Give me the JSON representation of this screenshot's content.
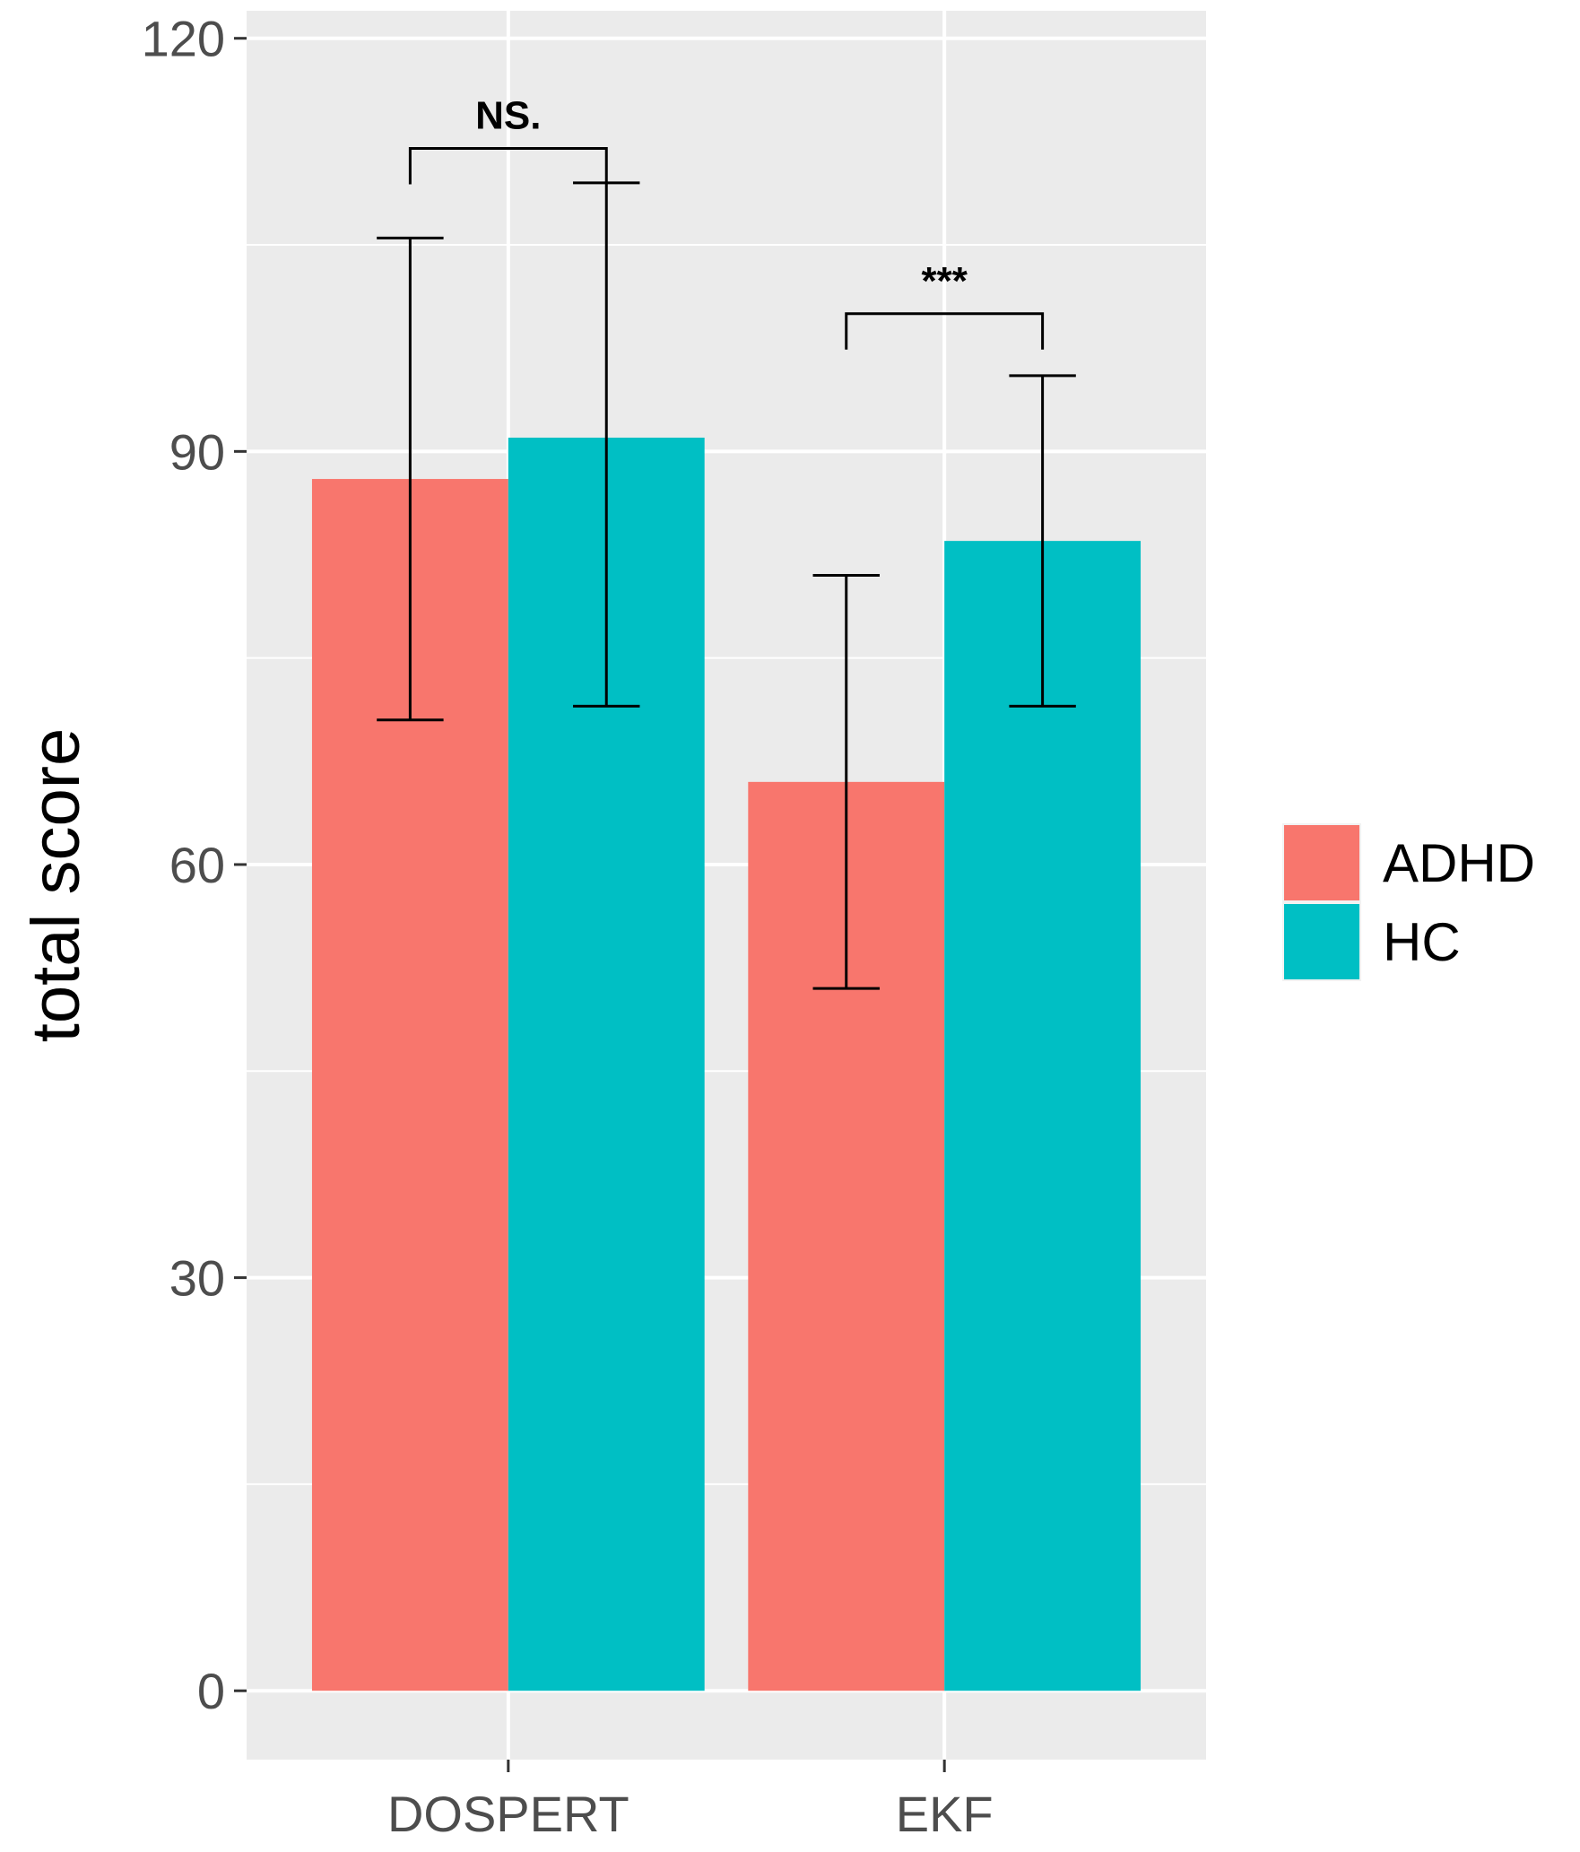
{
  "chart_data": {
    "type": "bar",
    "categories": [
      "DOSPERT",
      "EKF"
    ],
    "series": [
      {
        "name": "ADHD",
        "color": "#F8766D",
        "values": [
          88.0,
          66.0
        ],
        "error_low": [
          70.5,
          51.0
        ],
        "error_high": [
          105.5,
          81.0
        ]
      },
      {
        "name": "HC",
        "color": "#00BFC4",
        "values": [
          91.0,
          83.5
        ],
        "error_low": [
          71.5,
          71.5
        ],
        "error_high": [
          109.5,
          95.5
        ]
      }
    ],
    "significance": [
      {
        "category": "DOSPERT",
        "label": "NS.",
        "level": 112
      },
      {
        "category": "EKF",
        "label": "***",
        "level": 100
      }
    ],
    "ylabel": "total score",
    "xlabel": "",
    "title": "",
    "yticks": [
      0,
      30,
      60,
      90,
      120
    ],
    "ylim": [
      -5,
      122
    ],
    "grid": true,
    "legend_position": "right",
    "panel_background": "#EBEBEB"
  }
}
